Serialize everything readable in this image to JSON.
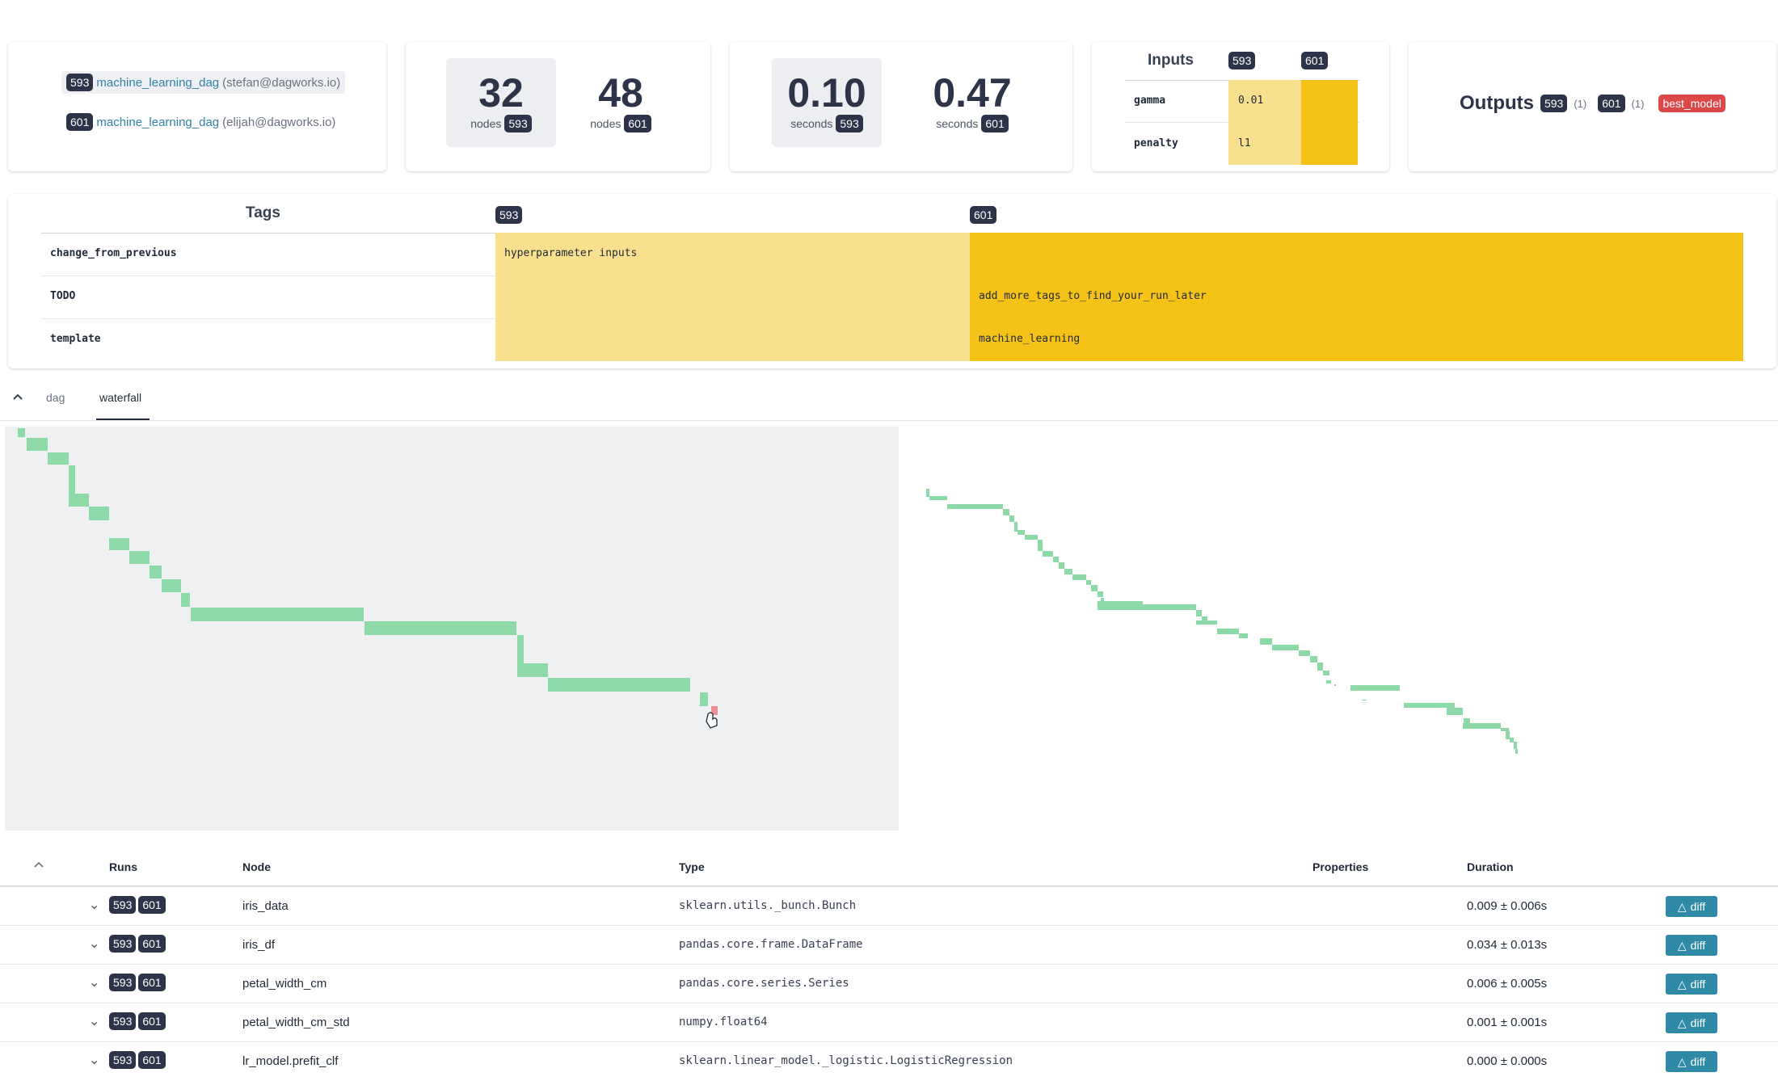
{
  "runs_card": {
    "runs": [
      {
        "id": "593",
        "name": "machine_learning_dag",
        "user": "(stefan@dagworks.io)"
      },
      {
        "id": "601",
        "name": "machine_learning_dag",
        "user": "(elijah@dagworks.io)"
      }
    ]
  },
  "nodes_card": {
    "stats": [
      {
        "value": "32",
        "label": "nodes",
        "run": "593"
      },
      {
        "value": "48",
        "label": "nodes",
        "run": "601"
      }
    ]
  },
  "duration_card": {
    "stats": [
      {
        "value": "0.10",
        "label": "seconds",
        "run": "593"
      },
      {
        "value": "0.47",
        "label": "seconds",
        "run": "601"
      }
    ]
  },
  "inputs_card": {
    "title": "Inputs",
    "run_a": "593",
    "run_b": "601",
    "rows": [
      {
        "name": "gamma",
        "a": "0.01",
        "b": ""
      },
      {
        "name": "penalty",
        "a": "l1",
        "b": ""
      }
    ]
  },
  "outputs_card": {
    "title": "Outputs",
    "run_a": "593",
    "count_a": "(1)",
    "run_b": "601",
    "count_b": "(1)",
    "output": "best_model"
  },
  "tags": {
    "title": "Tags",
    "run_a": "593",
    "run_b": "601",
    "rows": [
      {
        "key": "change_from_previous",
        "a": "hyperparameter inputs",
        "b": ""
      },
      {
        "key": "TODO",
        "a": "",
        "b": "add_more_tags_to_find_your_run_later"
      },
      {
        "key": "template",
        "a": "",
        "b": "machine_learning"
      }
    ]
  },
  "tabs": {
    "items": [
      "dag",
      "waterfall"
    ],
    "active": "waterfall"
  },
  "colors": {
    "run_a_fill": "#f8e08e",
    "run_b_fill": "#f5c218",
    "badge": "#2d3348",
    "accent": "#2f8aa8",
    "waterfall_bar": "#8ed9a8",
    "waterfall_error": "#e98f8f"
  },
  "table": {
    "headers": {
      "runs": "Runs",
      "node": "Node",
      "type": "Type",
      "properties": "Properties",
      "duration": "Duration"
    },
    "diff_label": "diff",
    "rows": [
      {
        "node": "iris_data",
        "type": "sklearn.utils._bunch.Bunch",
        "duration": "0.009 ± 0.006s",
        "runs": [
          "593",
          "601"
        ]
      },
      {
        "node": "iris_df",
        "type": "pandas.core.frame.DataFrame",
        "duration": "0.034 ± 0.013s",
        "runs": [
          "593",
          "601"
        ]
      },
      {
        "node": "petal_width_cm",
        "type": "pandas.core.series.Series",
        "duration": "0.006 ± 0.005s",
        "runs": [
          "593",
          "601"
        ]
      },
      {
        "node": "petal_width_cm_std",
        "type": "numpy.float64",
        "duration": "0.001 ± 0.001s",
        "runs": [
          "593",
          "601"
        ]
      },
      {
        "node": "lr_model.prefit_clf",
        "type": "sklearn.linear_model._logistic.LogisticRegression",
        "duration": "0.000 ± 0.000s",
        "runs": [
          "593",
          "601"
        ]
      }
    ]
  }
}
